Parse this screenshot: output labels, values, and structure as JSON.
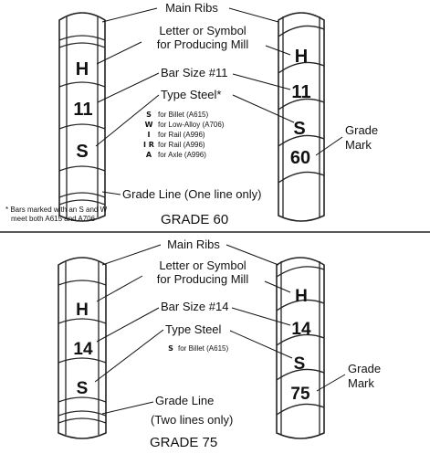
{
  "grade60": {
    "main_ribs": "Main Ribs",
    "letter_symbol_1": "Letter or Symbol",
    "letter_symbol_2": "for Producing Mill",
    "bar_size": "Bar Size #11",
    "type_steel": "Type Steel*",
    "steel_types": [
      {
        "symbol": "S",
        "text": "for Billet (A615)"
      },
      {
        "symbol": "W",
        "text": "for Low-Alloy (A706)"
      },
      {
        "symbol": "I",
        "text": "for Rail (A996)"
      },
      {
        "symbol": "I R",
        "text": "for Rail (A996)"
      },
      {
        "symbol": "A",
        "text": "for Axle (A996)"
      }
    ],
    "grade_mark_1": "Grade",
    "grade_mark_2": "Mark",
    "grade_line": "Grade Line (One line only)",
    "footnote_1": "* Bars marked with an S and W",
    "footnote_2": "meet both A615 and A706",
    "title": "GRADE 60",
    "left_bar_marks": [
      "H",
      "11",
      "S"
    ],
    "right_bar_marks": [
      "H",
      "11",
      "S",
      "60"
    ]
  },
  "grade75": {
    "main_ribs": "Main Ribs",
    "letter_symbol_1": "Letter or Symbol",
    "letter_symbol_2": "for Producing Mill",
    "bar_size": "Bar Size #14",
    "type_steel": "Type Steel",
    "steel_type_symbol": "S",
    "steel_type_text": "for Billet (A615)",
    "grade_mark_1": "Grade",
    "grade_mark_2": "Mark",
    "grade_line_1": "Grade Line",
    "grade_line_2": "(Two lines only)",
    "title": "GRADE 75",
    "left_bar_marks": [
      "H",
      "14",
      "S"
    ],
    "right_bar_marks": [
      "H",
      "14",
      "S",
      "75"
    ]
  }
}
